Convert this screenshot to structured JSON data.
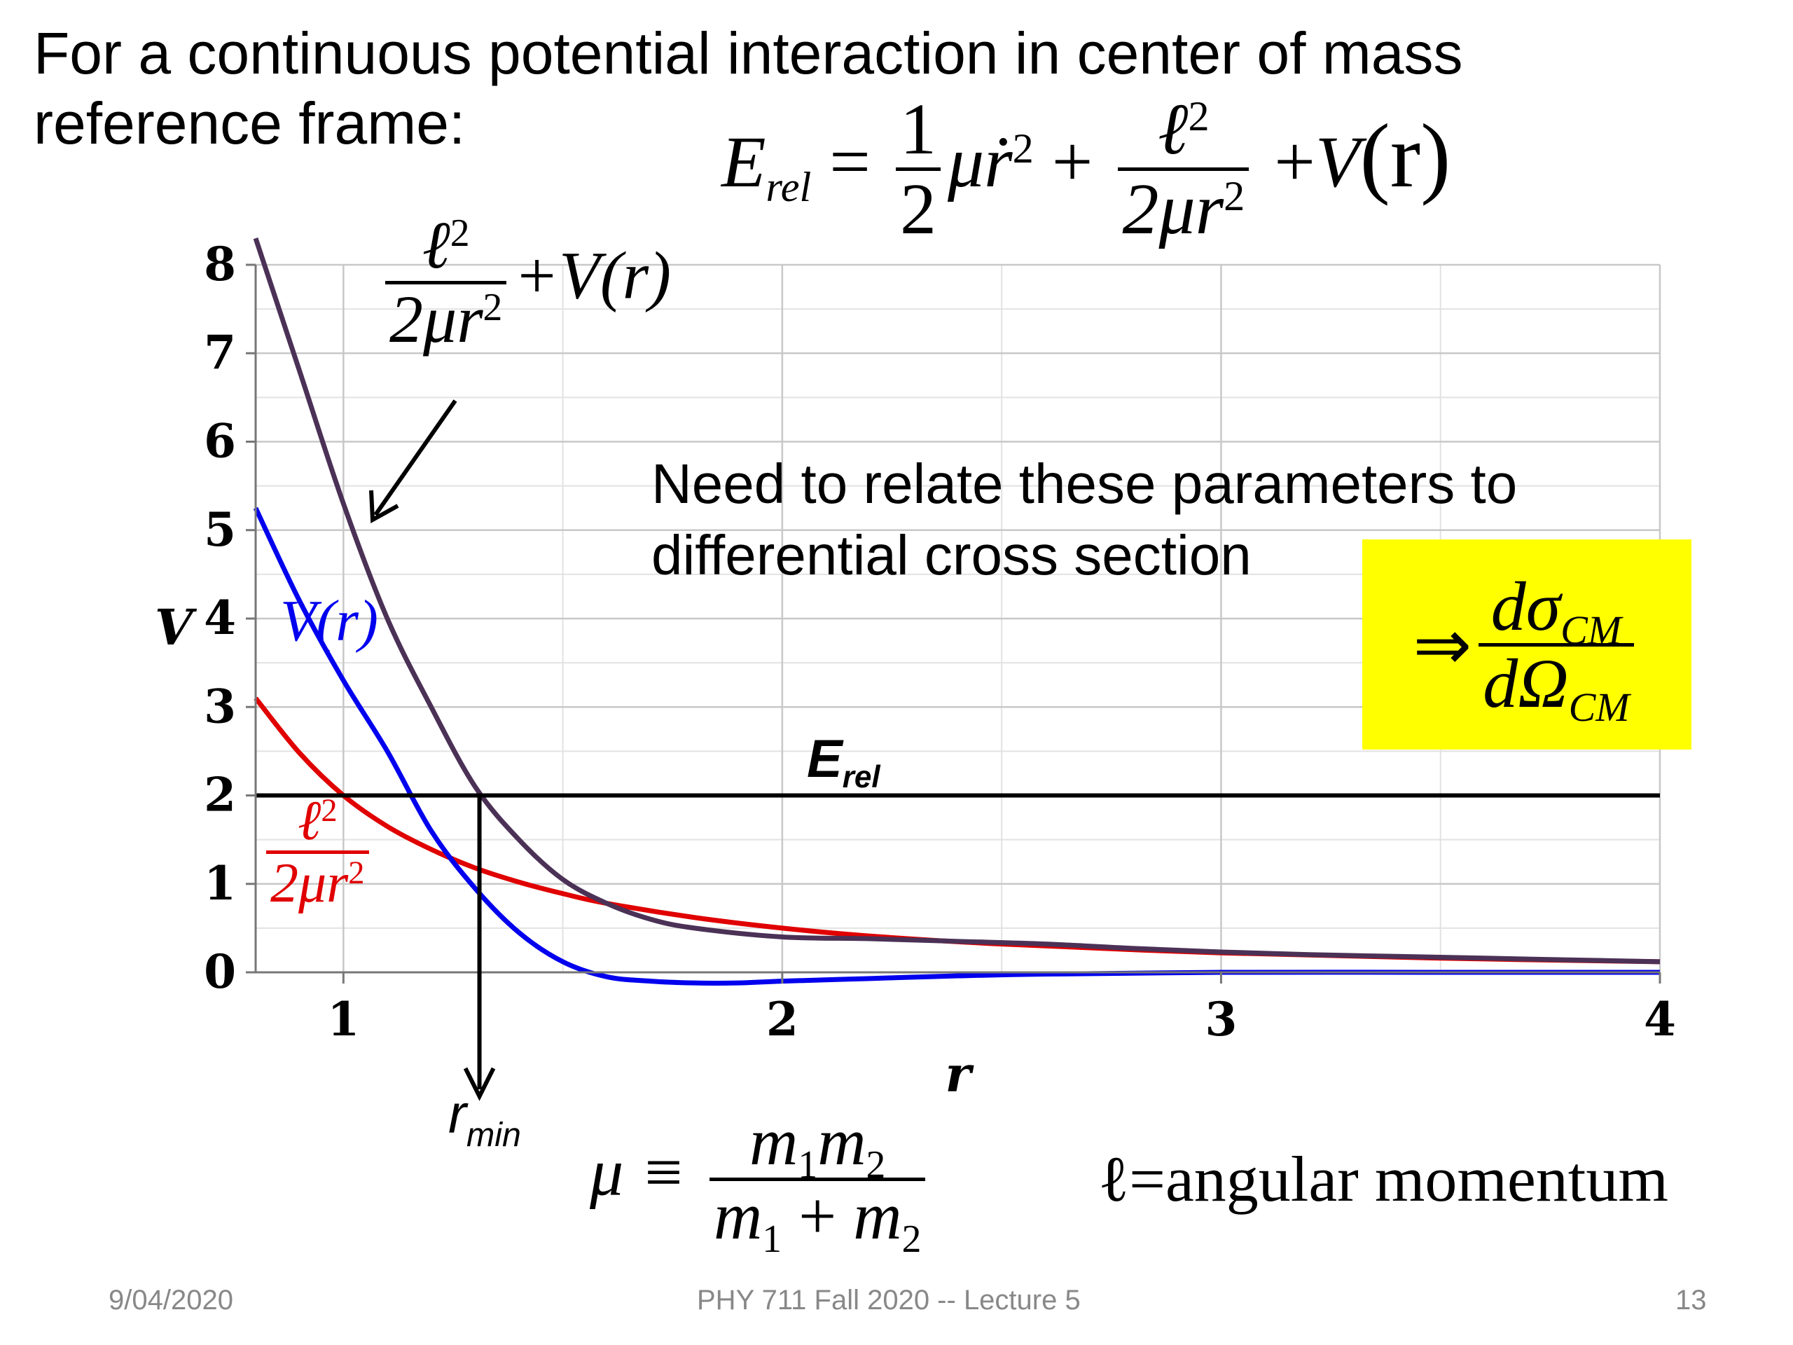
{
  "heading": {
    "line1": "For a continuous potential interaction in center of mass",
    "line2": "reference frame:"
  },
  "equations": {
    "energy": {
      "lhs": "E",
      "lhs_sub": "rel",
      "equals": "=",
      "half_num": "1",
      "half_den": "2",
      "kinetic": "μṙ",
      "kinetic_sup": "2",
      "plus1": "+",
      "cent_num": "ℓ",
      "cent_num_sup": "2",
      "cent_den": "2μr",
      "cent_den_sup": "2",
      "plus2": "+",
      "potential": "V",
      "potential_arg": "(r)"
    },
    "effective": {
      "num": "ℓ",
      "num_sup": "2",
      "den": "2μr",
      "den_sup": "2",
      "rest": "+V(r)"
    },
    "reduced_mass": {
      "lhs": "μ ≡",
      "num_a": "m",
      "num_a_sub": "1",
      "num_b": "m",
      "num_b_sub": "2",
      "den_a": "m",
      "den_a_sub": "1",
      "den_plus": " + ",
      "den_b": "m",
      "den_b_sub": "2"
    },
    "cross_section": {
      "implies": "⇒",
      "num": "dσ",
      "num_sub": "CM",
      "den": "dΩ",
      "den_sub": "CM"
    }
  },
  "labels": {
    "angular_momentum": "ℓ=angular momentum",
    "note_line1": "Need to relate these parameters to",
    "note_line2": "differential cross section",
    "vr": "V(r)",
    "cent_num": "ℓ",
    "cent_num_sup": "2",
    "cent_den": "2μr",
    "cent_den_sup": "2",
    "erel_main": "E",
    "erel_sub": "rel",
    "rmin_main": "r",
    "rmin_sub": "min"
  },
  "footer": {
    "date": "9/04/2020",
    "course": "PHY 711  Fall 2020 -- Lecture 5",
    "page": "13"
  },
  "colors": {
    "effective": "#4b3156",
    "potential": "#0000ee",
    "centrifugal": "#e00000",
    "energy_line": "#000000",
    "highlight": "#ffff00",
    "grid": "#c8c8c8"
  },
  "chart_data": {
    "type": "line",
    "xlabel": "r",
    "ylabel": "V",
    "xlim": [
      0.8,
      4
    ],
    "ylim": [
      0,
      8
    ],
    "xticks": [
      1,
      2,
      3,
      4
    ],
    "yticks": [
      0,
      1,
      2,
      3,
      4,
      5,
      6,
      7,
      8
    ],
    "grid": true,
    "series": [
      {
        "key": "effective",
        "x": [
          0.8,
          0.9,
          1.0,
          1.1,
          1.2,
          1.3,
          1.4,
          1.5,
          1.6,
          1.7,
          1.8,
          2.0,
          2.2,
          2.4,
          2.6,
          2.8,
          3.0,
          3.2,
          3.4,
          3.6,
          3.8,
          4.0
        ],
        "y": [
          8.3,
          6.8,
          5.3,
          4.0,
          3.0,
          2.1,
          1.5,
          1.05,
          0.78,
          0.6,
          0.5,
          0.4,
          0.38,
          0.35,
          0.32,
          0.27,
          0.23,
          0.2,
          0.18,
          0.16,
          0.14,
          0.12
        ]
      },
      {
        "key": "potential",
        "x": [
          0.8,
          0.9,
          1.0,
          1.1,
          1.2,
          1.3,
          1.4,
          1.5,
          1.6,
          1.7,
          1.8,
          1.9,
          2.0,
          2.2,
          2.4,
          2.6,
          3.0,
          3.5,
          4.0
        ],
        "y": [
          5.25,
          4.2,
          3.3,
          2.5,
          1.6,
          0.95,
          0.45,
          0.12,
          -0.05,
          -0.1,
          -0.12,
          -0.12,
          -0.1,
          -0.07,
          -0.04,
          -0.02,
          0.0,
          0.0,
          0.0
        ]
      },
      {
        "key": "centrifugal",
        "x": [
          0.8,
          0.9,
          1.0,
          1.1,
          1.2,
          1.3,
          1.4,
          1.5,
          1.6,
          1.8,
          2.0,
          2.2,
          2.5,
          3.0,
          3.5,
          4.0
        ],
        "y": [
          3.1,
          2.48,
          2.0,
          1.65,
          1.39,
          1.18,
          1.02,
          0.89,
          0.78,
          0.62,
          0.5,
          0.41,
          0.32,
          0.22,
          0.16,
          0.12
        ]
      }
    ],
    "energy_level": {
      "y": 2
    },
    "rmin": {
      "x": 1.31
    }
  }
}
